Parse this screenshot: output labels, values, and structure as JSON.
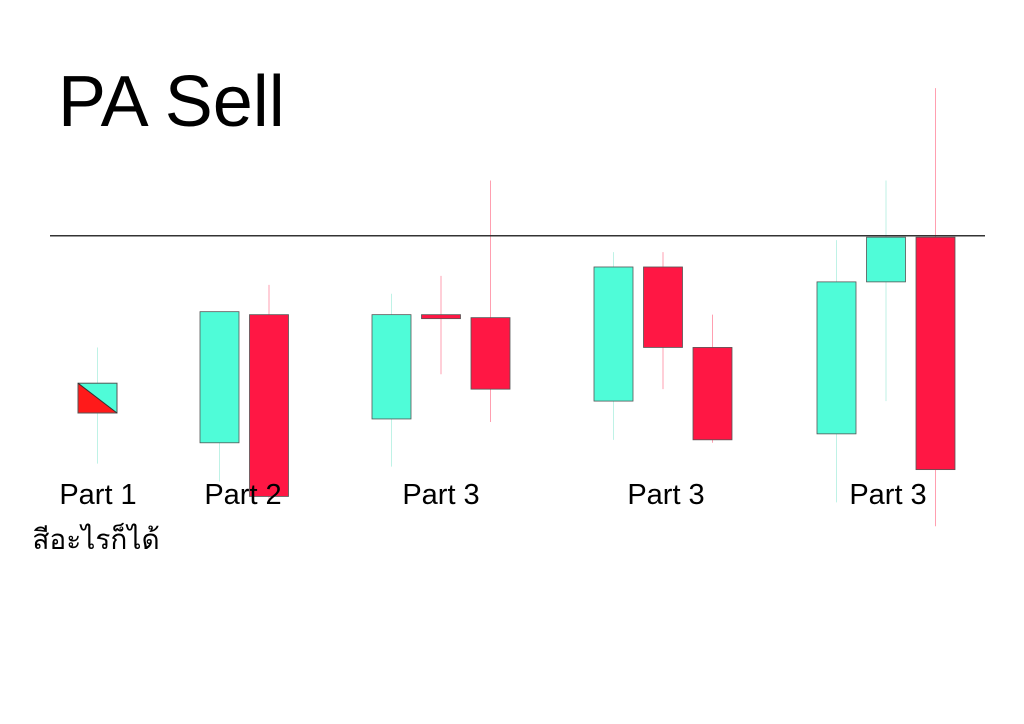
{
  "title": "PA Sell",
  "note": "สีอะไรก็ได้",
  "labels": [
    "Part 1",
    "Part 2",
    "Part 3",
    "Part 3",
    "Part 3"
  ],
  "colors": {
    "bull": "#4ffcd8",
    "bear": "#ff1744",
    "any_bear": "#ff1a1a",
    "bull_wick": "#bff2e6",
    "bear_wick": "#ff9fb0",
    "outline": "#555555",
    "level_line": "#333333"
  },
  "groups": [
    {
      "label_index": 0,
      "candles": [
        {
          "color": "any",
          "open": 1.0,
          "close": 0.0,
          "high": 2.2,
          "low": -1.7
        }
      ]
    },
    {
      "label_index": 1,
      "candles": [
        {
          "color": "bull",
          "open": -1.0,
          "close": 3.4,
          "high": 3.4,
          "low": -2.3
        },
        {
          "color": "bear",
          "open": 3.3,
          "close": -2.8,
          "high": 4.3,
          "low": -2.9
        }
      ]
    },
    {
      "label_index": 2,
      "candles": [
        {
          "color": "bull",
          "open": -0.2,
          "close": 3.3,
          "high": 4.0,
          "low": -1.8
        },
        {
          "color": "bear",
          "open": 3.3,
          "close": 3.2,
          "high": 4.6,
          "low": 1.3
        },
        {
          "color": "bear",
          "open": 3.2,
          "close": 0.8,
          "high": 7.8,
          "low": -0.3
        }
      ]
    },
    {
      "label_index": 3,
      "candles": [
        {
          "color": "bull",
          "open": 0.4,
          "close": 4.9,
          "high": 5.4,
          "low": -0.9
        },
        {
          "color": "bear",
          "open": 4.9,
          "close": 2.2,
          "high": 5.4,
          "low": 0.8
        },
        {
          "color": "bear",
          "open": 2.2,
          "close": -0.9,
          "high": 3.3,
          "low": -1.0
        }
      ]
    },
    {
      "label_index": 4,
      "candles": [
        {
          "color": "bull",
          "open": -0.7,
          "close": 4.4,
          "high": 5.8,
          "low": -3.0
        },
        {
          "color": "bull",
          "open": 4.4,
          "close": 5.9,
          "high": 7.8,
          "low": 0.4
        },
        {
          "color": "bear",
          "open": 5.9,
          "close": -1.9,
          "high": 10.9,
          "low": -3.8
        }
      ]
    }
  ],
  "level": 5.95
}
